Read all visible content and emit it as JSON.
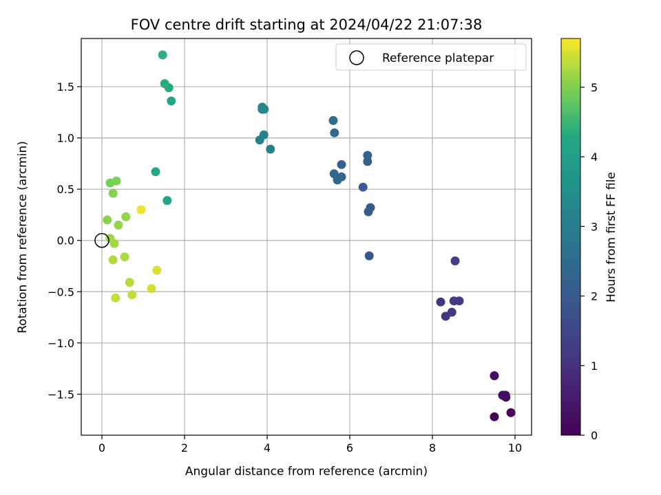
{
  "chart_data": {
    "type": "scatter",
    "title": "FOV centre drift starting at 2024/04/22 21:07:38",
    "xlabel": "Angular distance from reference (arcmin)",
    "ylabel": "Rotation from reference (arcmin)",
    "xlim": [
      -0.5,
      10.4
    ],
    "ylim": [
      -1.9,
      1.97
    ],
    "xticks": [
      0,
      2,
      4,
      6,
      8,
      10
    ],
    "xtick_labels": [
      "0",
      "2",
      "4",
      "6",
      "8",
      "10"
    ],
    "yticks": [
      -1.5,
      -1.0,
      -0.5,
      0.0,
      0.5,
      1.0,
      1.5
    ],
    "ytick_labels": [
      "−1.5",
      "−1.0",
      "−0.5",
      "0.0",
      "0.5",
      "1.0",
      "1.5"
    ],
    "grid": true,
    "legend": {
      "position": "top-right",
      "entries": [
        {
          "label": "Reference platepar",
          "marker": "open-circle"
        }
      ]
    },
    "reference_point": {
      "x": 0,
      "y": 0
    },
    "colorbar": {
      "label": "Hours from first FF file",
      "colormap": "viridis",
      "range": [
        0,
        5.7
      ],
      "ticks": [
        0,
        1,
        2,
        3,
        4,
        5
      ],
      "tick_labels": [
        "0",
        "1",
        "2",
        "3",
        "4",
        "5"
      ]
    },
    "points": [
      {
        "x": 9.5,
        "y": -1.72,
        "h": 0.05
      },
      {
        "x": 9.9,
        "y": -1.68,
        "h": 0.1
      },
      {
        "x": 9.78,
        "y": -1.53,
        "h": 0.15
      },
      {
        "x": 9.7,
        "y": -1.51,
        "h": 0.2
      },
      {
        "x": 9.77,
        "y": -1.51,
        "h": 0.25
      },
      {
        "x": 9.5,
        "y": -1.32,
        "h": 0.3
      },
      {
        "x": 8.2,
        "y": -0.6,
        "h": 1.05
      },
      {
        "x": 8.32,
        "y": -0.74,
        "h": 1.1
      },
      {
        "x": 8.47,
        "y": -0.7,
        "h": 1.15
      },
      {
        "x": 8.52,
        "y": -0.59,
        "h": 1.2
      },
      {
        "x": 8.65,
        "y": -0.59,
        "h": 1.25
      },
      {
        "x": 8.55,
        "y": -0.2,
        "h": 1.3
      },
      {
        "x": 6.47,
        "y": -0.15,
        "h": 1.95
      },
      {
        "x": 6.5,
        "y": 0.32,
        "h": 2.0
      },
      {
        "x": 6.45,
        "y": 0.28,
        "h": 2.05
      },
      {
        "x": 6.32,
        "y": 0.52,
        "h": 2.1
      },
      {
        "x": 6.43,
        "y": 0.77,
        "h": 2.15
      },
      {
        "x": 6.43,
        "y": 0.83,
        "h": 2.2
      },
      {
        "x": 5.8,
        "y": 0.74,
        "h": 2.25
      },
      {
        "x": 5.8,
        "y": 0.62,
        "h": 2.3
      },
      {
        "x": 5.7,
        "y": 0.59,
        "h": 2.35
      },
      {
        "x": 5.62,
        "y": 0.65,
        "h": 2.4
      },
      {
        "x": 5.63,
        "y": 1.05,
        "h": 2.45
      },
      {
        "x": 5.6,
        "y": 1.17,
        "h": 2.5
      },
      {
        "x": 4.08,
        "y": 0.89,
        "h": 3.05
      },
      {
        "x": 3.82,
        "y": 0.98,
        "h": 3.1
      },
      {
        "x": 3.92,
        "y": 1.03,
        "h": 3.15
      },
      {
        "x": 3.88,
        "y": 1.3,
        "h": 3.2
      },
      {
        "x": 3.93,
        "y": 1.28,
        "h": 3.25
      },
      {
        "x": 3.88,
        "y": 1.28,
        "h": 3.3
      },
      {
        "x": 1.58,
        "y": 0.39,
        "h": 4.15
      },
      {
        "x": 1.3,
        "y": 0.67,
        "h": 4.2
      },
      {
        "x": 1.68,
        "y": 1.36,
        "h": 4.25
      },
      {
        "x": 1.62,
        "y": 1.49,
        "h": 4.3
      },
      {
        "x": 1.52,
        "y": 1.53,
        "h": 4.35
      },
      {
        "x": 1.47,
        "y": 1.81,
        "h": 4.4
      },
      {
        "x": 0.2,
        "y": 0.56,
        "h": 4.95
      },
      {
        "x": 0.35,
        "y": 0.58,
        "h": 5.0
      },
      {
        "x": 0.27,
        "y": 0.46,
        "h": 5.03
      },
      {
        "x": 0.13,
        "y": 0.2,
        "h": 5.06
      },
      {
        "x": 0.4,
        "y": 0.15,
        "h": 5.1
      },
      {
        "x": 0.58,
        "y": 0.23,
        "h": 5.13
      },
      {
        "x": 0.2,
        "y": 0.02,
        "h": 5.16
      },
      {
        "x": 0.3,
        "y": -0.03,
        "h": 5.2
      },
      {
        "x": 0.55,
        "y": -0.16,
        "h": 5.25
      },
      {
        "x": 0.27,
        "y": -0.19,
        "h": 5.28
      },
      {
        "x": 0.67,
        "y": -0.41,
        "h": 5.32
      },
      {
        "x": 0.73,
        "y": -0.53,
        "h": 5.36
      },
      {
        "x": 0.33,
        "y": -0.56,
        "h": 5.4
      },
      {
        "x": 1.2,
        "y": -0.47,
        "h": 5.45
      },
      {
        "x": 1.33,
        "y": -0.29,
        "h": 5.52
      },
      {
        "x": 0.95,
        "y": 0.3,
        "h": 5.6
      }
    ]
  }
}
